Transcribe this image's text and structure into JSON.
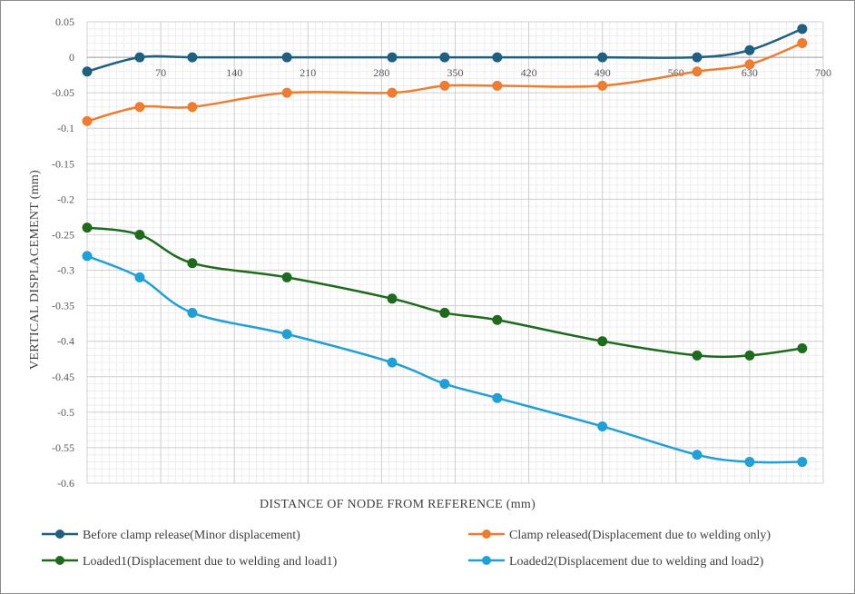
{
  "chart_data": {
    "type": "line",
    "title": "",
    "xlabel": "DISTANCE  OF NODE FROM REFERENCE (mm)",
    "ylabel": "VERTICAL  DISPLACEMENT (mm)",
    "xlim": [
      0,
      700
    ],
    "ylim": [
      -0.6,
      0.05
    ],
    "xticks": [
      70,
      140,
      210,
      280,
      350,
      420,
      490,
      560,
      630,
      700
    ],
    "yticks": [
      0.05,
      0,
      -0.05,
      -0.1,
      -0.15,
      -0.2,
      -0.25,
      -0.3,
      -0.35,
      -0.4,
      -0.45,
      -0.5,
      -0.55,
      -0.6
    ],
    "ytick_labels": [
      "0.05",
      "0",
      "-0.05",
      "-0.1",
      "-0.15",
      "-0.2",
      "-0.25",
      "-0.3",
      "-0.35",
      "-0.4",
      "-0.45",
      "-0.5",
      "-0.55",
      "-0.6"
    ],
    "grid": true,
    "x": [
      0,
      50,
      100,
      190,
      290,
      340,
      390,
      490,
      580,
      630,
      680
    ],
    "series": [
      {
        "name": "Before clamp release(Minor displacement)",
        "color": "#1f5f7f",
        "values": [
          -0.02,
          0,
          0,
          0,
          0,
          0,
          0,
          0,
          0,
          0.01,
          0.04
        ]
      },
      {
        "name": "Clamp released(Displacement due to welding only)",
        "color": "#ed7d31",
        "values": [
          -0.09,
          -0.07,
          -0.07,
          -0.05,
          -0.05,
          -0.04,
          -0.04,
          -0.04,
          -0.02,
          -0.01,
          0.02
        ]
      },
      {
        "name": "Loaded1(Displacement due to welding and load1)",
        "color": "#1e6b1e",
        "values": [
          -0.24,
          -0.25,
          -0.29,
          -0.31,
          -0.34,
          -0.36,
          -0.37,
          -0.4,
          -0.42,
          -0.42,
          -0.41
        ]
      },
      {
        "name": "Loaded2(Displacement due to welding and load2)",
        "color": "#21a0d8",
        "values": [
          -0.28,
          -0.31,
          -0.36,
          -0.39,
          -0.43,
          -0.46,
          -0.48,
          -0.52,
          -0.56,
          -0.57,
          -0.57
        ]
      }
    ],
    "legend_position": "bottom"
  }
}
